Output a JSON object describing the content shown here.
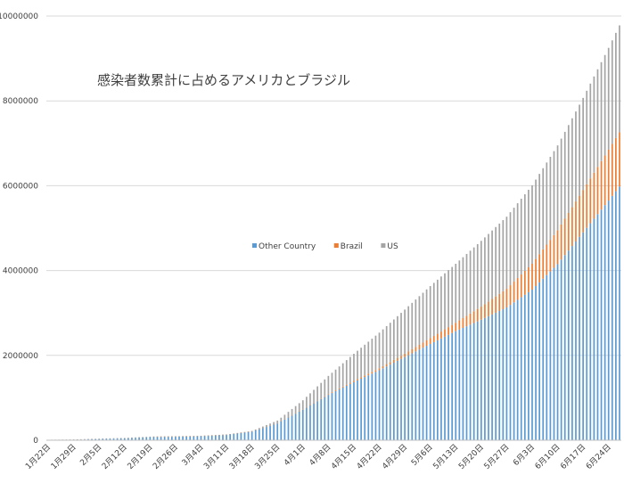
{
  "chart_data": {
    "type": "bar",
    "stacked": true,
    "title": "感染者数累計に占めるアメリカとブラジル",
    "xlabel": "",
    "ylabel": "",
    "ylim": [
      0,
      10000000
    ],
    "yticks": [
      0,
      2000000,
      4000000,
      6000000,
      8000000,
      10000000
    ],
    "grid": true,
    "legend_position": "center",
    "x_tick_labels": [
      "1月22日",
      "1月29日",
      "2月5日",
      "2月12日",
      "2月19日",
      "2月26日",
      "3月4日",
      "3月11日",
      "3月18日",
      "3月25日",
      "4月1日",
      "4月8日",
      "4月15日",
      "4月22日",
      "4月29日",
      "5月6日",
      "5月13日",
      "5月20日",
      "5月27日",
      "6月3日",
      "6月10日",
      "6月17日",
      "6月24日"
    ],
    "x_tick_every": 7,
    "key_points": [
      {
        "day": 0,
        "other": 555,
        "brazil": 0,
        "us": 1
      },
      {
        "day": 7,
        "other": 7800,
        "brazil": 0,
        "us": 5
      },
      {
        "day": 14,
        "other": 28000,
        "brazil": 0,
        "us": 12
      },
      {
        "day": 21,
        "other": 45000,
        "brazil": 0,
        "us": 13
      },
      {
        "day": 28,
        "other": 75000,
        "brazil": 0,
        "us": 15
      },
      {
        "day": 35,
        "other": 82000,
        "brazil": 1,
        "us": 60
      },
      {
        "day": 42,
        "other": 94000,
        "brazil": 4,
        "us": 150
      },
      {
        "day": 49,
        "other": 125000,
        "brazil": 52,
        "us": 1300
      },
      {
        "day": 56,
        "other": 205000,
        "brazil": 430,
        "us": 14000
      },
      {
        "day": 63,
        "other": 395000,
        "brazil": 2400,
        "us": 66000
      },
      {
        "day": 70,
        "other": 720000,
        "brazil": 6800,
        "us": 215000
      },
      {
        "day": 77,
        "other": 1070000,
        "brazil": 16000,
        "us": 430000
      },
      {
        "day": 84,
        "other": 1370000,
        "brazil": 28000,
        "us": 640000
      },
      {
        "day": 91,
        "other": 1650000,
        "brazil": 46000,
        "us": 840000
      },
      {
        "day": 98,
        "other": 1960000,
        "brazil": 80000,
        "us": 1040000
      },
      {
        "day": 105,
        "other": 2270000,
        "brazil": 135000,
        "us": 1230000
      },
      {
        "day": 112,
        "other": 2570000,
        "brazil": 200000,
        "us": 1390000
      },
      {
        "day": 119,
        "other": 2840000,
        "brazil": 310000,
        "us": 1550000
      },
      {
        "day": 126,
        "other": 3130000,
        "brazil": 440000,
        "us": 1700000
      },
      {
        "day": 133,
        "other": 3550000,
        "brazil": 610000,
        "us": 1850000
      },
      {
        "day": 140,
        "other": 4150000,
        "brazil": 800000,
        "us": 2000000
      },
      {
        "day": 147,
        "other": 4900000,
        "brazil": 1000000,
        "us": 2170000
      },
      {
        "day": 154,
        "other": 5650000,
        "brazil": 1200000,
        "us": 2400000
      },
      {
        "day": 157,
        "other": 5980000,
        "brazil": 1280000,
        "us": 2520000
      }
    ],
    "series": [
      {
        "name": "Other Country",
        "key": "other",
        "color": "#5b9bd5"
      },
      {
        "name": "Brazil",
        "key": "brazil",
        "color": "#ed7d31"
      },
      {
        "name": "US",
        "key": "us",
        "color": "#a5a5a5"
      }
    ],
    "y_tick_labels": [
      "0",
      "2000000",
      "4000000",
      "6000000",
      "8000000",
      "10000000"
    ]
  }
}
